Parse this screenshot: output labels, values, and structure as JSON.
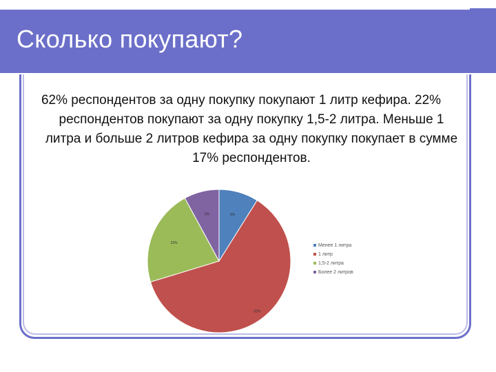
{
  "slide": {
    "title": "Сколько покупают?",
    "body": "62% респондентов за одну покупку покупают 1 литр кефира. 22% респондентов покупают за одну покупку 1,5-2 литра. Меньше 1 литра и больше 2 литров кефира за одну покупку покупает в сумме 17% респондентов."
  },
  "colors": {
    "title_bar": "#6b6fc9",
    "frame": "#6b6fc9"
  },
  "chart_data": {
    "type": "pie",
    "slices": [
      {
        "label": "Менее 1 литра",
        "value": 9,
        "display": "9%",
        "color": "#4f81bd"
      },
      {
        "label": "1 литр",
        "value": 62,
        "display": "62%",
        "color": "#c0504d"
      },
      {
        "label": "1,5-2 литра",
        "value": 22,
        "display": "22%",
        "color": "#9bbb59"
      },
      {
        "label": "Более 2 литров",
        "value": 8,
        "display": "8%",
        "color": "#8064a2"
      }
    ],
    "legend_position": "right"
  }
}
